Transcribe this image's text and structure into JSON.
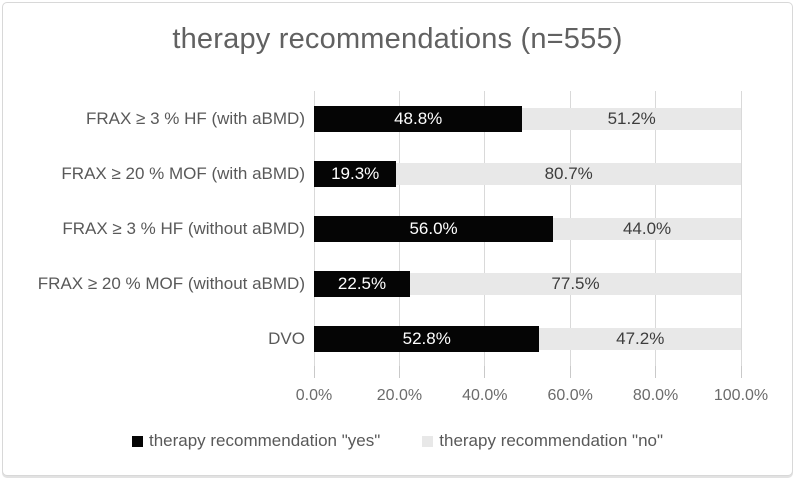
{
  "title": "therapy recommendations (n=555)",
  "chart_data": {
    "type": "bar",
    "orientation": "horizontal",
    "stacked": true,
    "title": "therapy recommendations (n=555)",
    "categories": [
      "FRAX ≥ 3 % HF (with aBMD)",
      "FRAX ≥ 20 % MOF (with aBMD)",
      "FRAX ≥ 3 % HF (without aBMD)",
      "FRAX ≥ 20 % MOF (without aBMD)",
      "DVO"
    ],
    "series": [
      {
        "name": "therapy recommendation \"yes\"",
        "color": "#050505",
        "values": [
          48.8,
          19.3,
          56.0,
          22.5,
          52.8
        ]
      },
      {
        "name": "therapy recommendation \"no\"",
        "color": "#e8e8e8",
        "values": [
          51.2,
          80.7,
          44.0,
          77.5,
          47.2
        ]
      }
    ],
    "value_labels": [
      [
        "48.8%",
        "51.2%"
      ],
      [
        "19.3%",
        "80.7%"
      ],
      [
        "56.0%",
        "44.0%"
      ],
      [
        "22.5%",
        "77.5%"
      ],
      [
        "52.8%",
        "47.2%"
      ]
    ],
    "x_tick_labels": [
      "0.0%",
      "20.0%",
      "40.0%",
      "60.0%",
      "80.0%",
      "100.0%"
    ],
    "xlim": [
      0,
      100
    ],
    "grid": true,
    "legend_position": "bottom"
  },
  "legend": {
    "items": [
      {
        "label": "therapy recommendation \"yes\"",
        "color": "#050505"
      },
      {
        "label": "therapy recommendation \"no\"",
        "color": "#e8e8e8"
      }
    ]
  },
  "colors": {
    "yes_bar": "#050505",
    "no_bar": "#e8e8e8",
    "gridline": "#d9d9d9",
    "title_text": "#616161",
    "axis_text": "#6b6b6b",
    "category_text": "#595959",
    "frame_border": "#d8d8d8"
  }
}
